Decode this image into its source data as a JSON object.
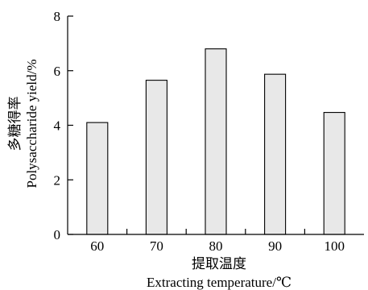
{
  "chart_data": {
    "type": "bar",
    "title": "",
    "categories": [
      "60",
      "70",
      "80",
      "90",
      "100"
    ],
    "values": [
      4.1,
      5.65,
      6.8,
      5.87,
      4.47
    ],
    "bar_color": "#e8e8e8",
    "xlabel": {
      "cn": "提取温度",
      "en": "Extracting temperature/℃"
    },
    "ylabel": {
      "cn": "多糖得率",
      "en": "Polysaccharide yield/%"
    },
    "ylim": [
      0,
      8
    ],
    "yticks": [
      "0",
      "2",
      "4",
      "6",
      "8"
    ],
    "grid": false,
    "legend": "none"
  }
}
